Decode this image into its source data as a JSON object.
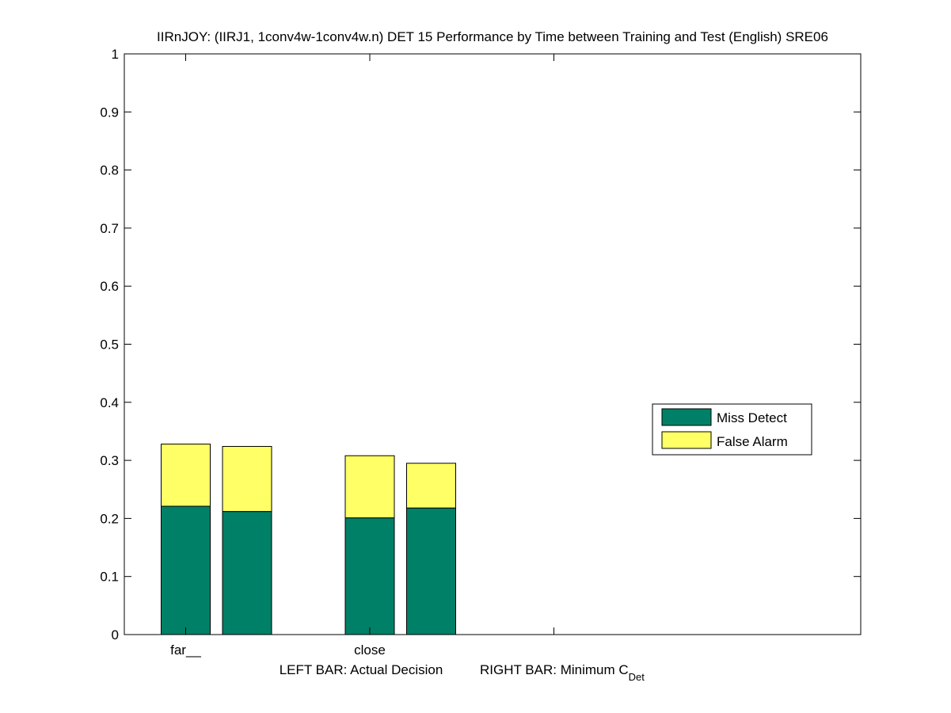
{
  "chart_data": {
    "type": "bar",
    "stacked": true,
    "title": "IIRnJOY: (IIRJ1, 1conv4w-1conv4w.n) DET 15 Performance by Time between Training and Test (English) SRE06",
    "xlabel_left": "LEFT BAR: Actual Decision",
    "xlabel_right_prefix": "RIGHT BAR: Minimum C",
    "xlabel_right_subscript": "Det",
    "ylim": [
      0,
      1
    ],
    "yticks": [
      "0",
      "0.1",
      "0.2",
      "0.3",
      "0.4",
      "0.5",
      "0.6",
      "0.7",
      "0.8",
      "0.9",
      "1"
    ],
    "xlim": [
      0,
      12
    ],
    "xtick_positions": [
      1,
      4,
      7
    ],
    "groups": [
      {
        "label": "far__",
        "bars": [
          {
            "role": "actual_decision",
            "x": 1,
            "miss_detect": 0.221,
            "false_alarm": 0.107
          },
          {
            "role": "minimum_cdet",
            "x": 2,
            "miss_detect": 0.212,
            "false_alarm": 0.112
          }
        ]
      },
      {
        "label": "close",
        "bars": [
          {
            "role": "actual_decision",
            "x": 4,
            "miss_detect": 0.201,
            "false_alarm": 0.107
          },
          {
            "role": "minimum_cdet",
            "x": 5,
            "miss_detect": 0.218,
            "false_alarm": 0.077
          }
        ]
      }
    ],
    "legend": {
      "placement": "right",
      "entries": [
        {
          "label": "Miss Detect",
          "color": "#008066"
        },
        {
          "label": "False Alarm",
          "color": "#ffff66"
        }
      ]
    },
    "grid": false
  }
}
